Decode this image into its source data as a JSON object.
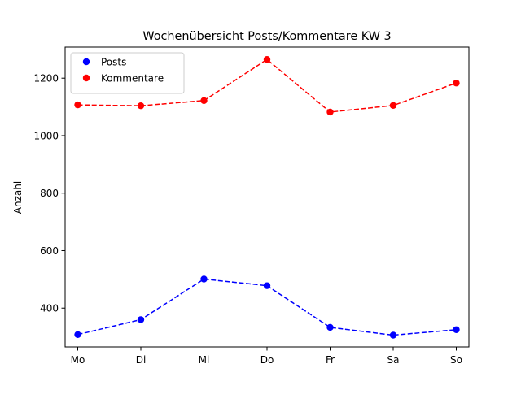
{
  "chart_data": {
    "type": "line",
    "title": "Wochenübersicht Posts/Kommentare KW 3",
    "xlabel": "",
    "ylabel": "Anzahl",
    "categories": [
      "Mo",
      "Di",
      "Mi",
      "Do",
      "Fr",
      "Sa",
      "So"
    ],
    "ylim": [
      265,
      1308
    ],
    "yticks": [
      400,
      600,
      800,
      1000,
      1200
    ],
    "grid": false,
    "legend_position": "upper-left",
    "series": [
      {
        "name": "Posts",
        "color": "#0000ff",
        "line_style": "dashed",
        "marker": "circle",
        "values": [
          308,
          360,
          501,
          478,
          333,
          306,
          325
        ]
      },
      {
        "name": "Kommentare",
        "color": "#ff0000",
        "line_style": "dashed",
        "marker": "circle",
        "values": [
          1107,
          1104,
          1122,
          1265,
          1082,
          1105,
          1183
        ]
      }
    ]
  }
}
